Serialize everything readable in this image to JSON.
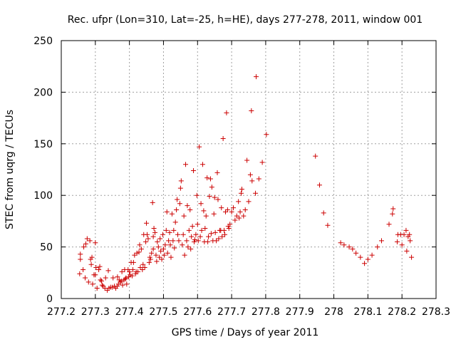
{
  "chart_data": {
    "type": "scatter",
    "title": "Rec. ufpr (Lon=310, Lat=-25, h=HE), days 277-278, 2011, window 001",
    "xlabel": "GPS time / Days of year 2011",
    "ylabel": "STEC from uqrg / TECUs",
    "xlim": [
      277.2,
      278.3
    ],
    "ylim": [
      0,
      250
    ],
    "xticks": [
      "277.2",
      "277.3",
      "277.4",
      "277.5",
      "277.6",
      "277.7",
      "277.8",
      "277.9",
      "278",
      "278.1",
      "278.2",
      "278.3"
    ],
    "yticks": [
      "0",
      "50",
      "100",
      "150",
      "200",
      "250"
    ],
    "grid": true,
    "marker": "+",
    "color": "#cc0000",
    "points": [
      [
        277.254,
        24
      ],
      [
        277.256,
        38
      ],
      [
        277.256,
        43
      ],
      [
        277.264,
        28
      ],
      [
        277.266,
        50
      ],
      [
        277.27,
        20
      ],
      [
        277.272,
        53
      ],
      [
        277.276,
        58
      ],
      [
        277.28,
        16
      ],
      [
        277.284,
        56
      ],
      [
        277.286,
        38
      ],
      [
        277.288,
        33
      ],
      [
        277.29,
        40
      ],
      [
        277.292,
        14
      ],
      [
        277.296,
        23
      ],
      [
        277.3,
        54
      ],
      [
        277.3,
        23
      ],
      [
        277.302,
        30
      ],
      [
        277.305,
        10
      ],
      [
        277.31,
        28
      ],
      [
        277.313,
        31
      ],
      [
        277.315,
        18
      ],
      [
        277.318,
        17
      ],
      [
        277.32,
        13
      ],
      [
        277.323,
        12
      ],
      [
        277.328,
        10
      ],
      [
        277.33,
        20
      ],
      [
        277.335,
        8
      ],
      [
        277.338,
        27
      ],
      [
        277.34,
        10
      ],
      [
        277.345,
        11
      ],
      [
        277.35,
        11
      ],
      [
        277.352,
        20
      ],
      [
        277.356,
        12
      ],
      [
        277.36,
        10
      ],
      [
        277.364,
        12
      ],
      [
        277.365,
        21
      ],
      [
        277.368,
        14
      ],
      [
        277.37,
        18
      ],
      [
        277.373,
        16
      ],
      [
        277.376,
        17
      ],
      [
        277.378,
        26
      ],
      [
        277.38,
        13
      ],
      [
        277.384,
        18
      ],
      [
        277.386,
        28
      ],
      [
        277.388,
        19
      ],
      [
        277.39,
        20
      ],
      [
        277.392,
        14
      ],
      [
        277.396,
        28
      ],
      [
        277.398,
        21
      ],
      [
        277.4,
        26
      ],
      [
        277.402,
        23
      ],
      [
        277.405,
        35
      ],
      [
        277.408,
        22
      ],
      [
        277.41,
        28
      ],
      [
        277.412,
        35
      ],
      [
        277.415,
        42
      ],
      [
        277.418,
        24
      ],
      [
        277.42,
        26
      ],
      [
        277.422,
        44
      ],
      [
        277.425,
        26
      ],
      [
        277.428,
        45
      ],
      [
        277.43,
        52
      ],
      [
        277.432,
        30
      ],
      [
        277.435,
        48
      ],
      [
        277.438,
        28
      ],
      [
        277.44,
        33
      ],
      [
        277.442,
        62
      ],
      [
        277.445,
        30
      ],
      [
        277.448,
        55
      ],
      [
        277.45,
        73
      ],
      [
        277.452,
        62
      ],
      [
        277.455,
        58
      ],
      [
        277.458,
        35
      ],
      [
        277.46,
        40
      ],
      [
        277.462,
        38
      ],
      [
        277.465,
        44
      ],
      [
        277.468,
        93
      ],
      [
        277.47,
        48
      ],
      [
        277.47,
        60
      ],
      [
        277.472,
        68
      ],
      [
        277.475,
        64
      ],
      [
        277.478,
        42
      ],
      [
        277.48,
        36
      ],
      [
        277.482,
        55
      ],
      [
        277.485,
        50
      ],
      [
        277.488,
        40
      ],
      [
        277.49,
        58
      ],
      [
        277.492,
        46
      ],
      [
        277.495,
        38
      ],
      [
        277.498,
        62
      ],
      [
        277.5,
        48
      ],
      [
        277.502,
        42
      ],
      [
        277.505,
        52
      ],
      [
        277.508,
        66
      ],
      [
        277.51,
        84
      ],
      [
        277.512,
        44
      ],
      [
        277.515,
        56
      ],
      [
        277.518,
        64
      ],
      [
        277.52,
        52
      ],
      [
        277.522,
        40
      ],
      [
        277.525,
        82
      ],
      [
        277.528,
        56
      ],
      [
        277.53,
        66
      ],
      [
        277.532,
        49
      ],
      [
        277.535,
        74
      ],
      [
        277.538,
        86
      ],
      [
        277.54,
        96
      ],
      [
        277.542,
        62
      ],
      [
        277.545,
        56
      ],
      [
        277.548,
        92
      ],
      [
        277.55,
        107
      ],
      [
        277.552,
        114
      ],
      [
        277.555,
        52
      ],
      [
        277.558,
        62
      ],
      [
        277.56,
        80
      ],
      [
        277.562,
        42
      ],
      [
        277.565,
        130
      ],
      [
        277.568,
        56
      ],
      [
        277.57,
        90
      ],
      [
        277.572,
        50
      ],
      [
        277.575,
        66
      ],
      [
        277.578,
        86
      ],
      [
        277.58,
        48
      ],
      [
        277.582,
        60
      ],
      [
        277.585,
        70
      ],
      [
        277.588,
        124
      ],
      [
        277.59,
        55
      ],
      [
        277.592,
        57
      ],
      [
        277.595,
        62
      ],
      [
        277.598,
        100
      ],
      [
        277.6,
        72
      ],
      [
        277.602,
        56
      ],
      [
        277.605,
        147
      ],
      [
        277.608,
        60
      ],
      [
        277.61,
        92
      ],
      [
        277.612,
        66
      ],
      [
        277.615,
        130
      ],
      [
        277.618,
        85
      ],
      [
        277.62,
        55
      ],
      [
        277.622,
        68
      ],
      [
        277.625,
        80
      ],
      [
        277.628,
        117
      ],
      [
        277.63,
        55
      ],
      [
        277.632,
        60
      ],
      [
        277.635,
        99
      ],
      [
        277.638,
        116
      ],
      [
        277.64,
        63
      ],
      [
        277.642,
        108
      ],
      [
        277.645,
        56
      ],
      [
        277.648,
        82
      ],
      [
        277.65,
        98
      ],
      [
        277.652,
        64
      ],
      [
        277.655,
        56
      ],
      [
        277.658,
        122
      ],
      [
        277.66,
        96
      ],
      [
        277.662,
        58
      ],
      [
        277.665,
        66
      ],
      [
        277.668,
        66
      ],
      [
        277.67,
        88
      ],
      [
        277.672,
        60
      ],
      [
        277.675,
        155
      ],
      [
        277.678,
        66
      ],
      [
        277.68,
        62
      ],
      [
        277.682,
        84
      ],
      [
        277.685,
        180
      ],
      [
        277.688,
        86
      ],
      [
        277.69,
        70
      ],
      [
        277.692,
        68
      ],
      [
        277.695,
        72
      ],
      [
        277.7,
        84
      ],
      [
        277.705,
        88
      ],
      [
        277.71,
        76
      ],
      [
        277.715,
        80
      ],
      [
        277.72,
        94
      ],
      [
        277.722,
        78
      ],
      [
        277.725,
        84
      ],
      [
        277.728,
        102
      ],
      [
        277.73,
        106
      ],
      [
        277.735,
        80
      ],
      [
        277.74,
        86
      ],
      [
        277.745,
        134
      ],
      [
        277.75,
        94
      ],
      [
        277.755,
        120
      ],
      [
        277.758,
        182
      ],
      [
        277.76,
        114
      ],
      [
        277.77,
        102
      ],
      [
        277.772,
        215
      ],
      [
        277.78,
        116
      ],
      [
        277.79,
        132
      ],
      [
        277.802,
        159
      ],
      [
        277.946,
        138
      ],
      [
        277.958,
        110
      ],
      [
        277.97,
        83
      ],
      [
        277.982,
        71
      ],
      [
        278.02,
        54
      ],
      [
        278.03,
        52
      ],
      [
        278.045,
        50
      ],
      [
        278.055,
        48
      ],
      [
        278.065,
        44
      ],
      [
        278.078,
        40
      ],
      [
        278.09,
        34
      ],
      [
        278.1,
        38
      ],
      [
        278.112,
        42
      ],
      [
        278.128,
        50
      ],
      [
        278.14,
        56
      ],
      [
        278.162,
        72
      ],
      [
        278.172,
        82
      ],
      [
        278.174,
        87
      ],
      [
        278.186,
        55
      ],
      [
        278.188,
        62
      ],
      [
        278.196,
        62
      ],
      [
        278.2,
        52
      ],
      [
        278.206,
        62
      ],
      [
        278.212,
        66
      ],
      [
        278.214,
        46
      ],
      [
        278.218,
        60
      ],
      [
        278.222,
        62
      ],
      [
        278.224,
        56
      ],
      [
        278.228,
        40
      ]
    ]
  }
}
